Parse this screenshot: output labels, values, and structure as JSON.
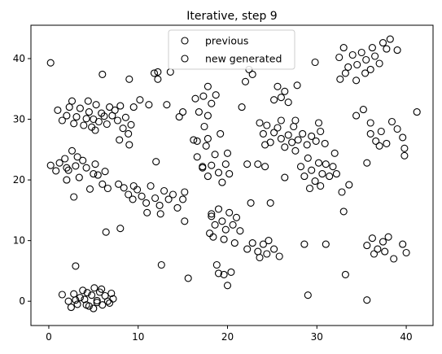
{
  "chart_data": {
    "type": "scatter",
    "title": "Iterative, step 9",
    "xlabel": "",
    "ylabel": "",
    "xlim": [
      -2,
      43
    ],
    "ylim": [
      -4,
      45.5
    ],
    "xticks": [
      0,
      10,
      20,
      30,
      40
    ],
    "yticks": [
      0,
      10,
      20,
      30,
      40
    ],
    "grid": false,
    "legend_position": "top-center",
    "marker_color": "#000000",
    "series": [
      {
        "name": "previous",
        "marker": "open-circle",
        "points": [
          [
            1.5,
            1.1
          ],
          [
            2.2,
            0.0
          ],
          [
            2.8,
            1.2
          ],
          [
            3.2,
            -0.5
          ],
          [
            3.8,
            1.8
          ],
          [
            4.0,
            0.3
          ],
          [
            4.5,
            -0.8
          ],
          [
            4.8,
            1.0
          ],
          [
            5.1,
            2.2
          ],
          [
            5.4,
            0.1
          ],
          [
            5.7,
            1.5
          ],
          [
            6.0,
            -0.6
          ],
          [
            6.3,
            0.9
          ],
          [
            6.6,
            0.0
          ],
          [
            7.0,
            1.3
          ],
          [
            2.5,
            -1.0
          ],
          [
            3.5,
            0.6
          ],
          [
            5.0,
            -1.2
          ],
          [
            6.8,
            -0.3
          ],
          [
            4.3,
            1.4
          ],
          [
            5.9,
            2.0
          ],
          [
            3.0,
            0.2
          ],
          [
            1.0,
            31.5
          ],
          [
            1.5,
            29.8
          ],
          [
            2.0,
            30.6
          ],
          [
            2.3,
            32.0
          ],
          [
            2.8,
            29.3
          ],
          [
            3.1,
            30.4
          ],
          [
            3.5,
            31.8
          ],
          [
            3.9,
            29.0
          ],
          [
            4.2,
            30.1
          ],
          [
            4.5,
            31.2
          ],
          [
            4.8,
            28.7
          ],
          [
            5.0,
            30.0
          ],
          [
            5.3,
            32.4
          ],
          [
            5.6,
            29.6
          ],
          [
            5.9,
            31.0
          ],
          [
            6.2,
            30.5
          ],
          [
            6.5,
            29.2
          ],
          [
            6.8,
            32.0
          ],
          [
            7.1,
            30.6
          ],
          [
            7.4,
            31.5
          ],
          [
            7.7,
            29.8
          ],
          [
            8.0,
            32.2
          ],
          [
            8.3,
            28.5
          ],
          [
            8.6,
            30.3
          ],
          [
            8.9,
            27.6
          ],
          [
            9.2,
            29.1
          ],
          [
            9.5,
            32.0
          ],
          [
            6.0,
            37.4
          ],
          [
            4.4,
            33.0
          ],
          [
            2.6,
            33.0
          ],
          [
            5.2,
            28.2
          ],
          [
            7.9,
            26.6
          ],
          [
            9.0,
            25.8
          ],
          [
            0.2,
            22.4
          ],
          [
            0.8,
            21.5
          ],
          [
            1.2,
            22.8
          ],
          [
            1.8,
            23.5
          ],
          [
            2.2,
            21.6
          ],
          [
            2.6,
            24.8
          ],
          [
            3.0,
            22.3
          ],
          [
            3.4,
            20.4
          ],
          [
            3.8,
            23.2
          ],
          [
            4.2,
            22.0
          ],
          [
            4.6,
            18.5
          ],
          [
            5.0,
            21.0
          ],
          [
            5.5,
            20.8
          ],
          [
            6.0,
            19.3
          ],
          [
            6.3,
            21.4
          ],
          [
            6.6,
            18.6
          ],
          [
            2.0,
            20.0
          ],
          [
            3.2,
            23.8
          ],
          [
            5.2,
            22.6
          ],
          [
            7.8,
            19.3
          ],
          [
            8.4,
            18.7
          ],
          [
            8.9,
            17.6
          ],
          [
            9.4,
            16.8
          ],
          [
            9.9,
            18.4
          ],
          [
            10.4,
            17.3
          ],
          [
            10.9,
            16.2
          ],
          [
            11.4,
            19.0
          ],
          [
            11.9,
            17.0
          ],
          [
            12.4,
            15.8
          ],
          [
            12.9,
            18.2
          ],
          [
            13.4,
            16.8
          ],
          [
            13.9,
            17.6
          ],
          [
            14.4,
            15.4
          ],
          [
            11.0,
            14.6
          ],
          [
            12.5,
            14.4
          ],
          [
            15.0,
            16.8
          ],
          [
            9.5,
            19.0
          ],
          [
            16.6,
            23.8
          ],
          [
            17.2,
            22.2
          ],
          [
            17.8,
            20.6
          ],
          [
            18.2,
            22.4
          ],
          [
            18.6,
            24.2
          ],
          [
            19.0,
            21.2
          ],
          [
            19.4,
            19.6
          ],
          [
            19.8,
            22.6
          ],
          [
            20.2,
            21.0
          ],
          [
            17.6,
            25.6
          ],
          [
            20.0,
            24.4
          ],
          [
            16.4,
            33.4
          ],
          [
            16.8,
            31.2
          ],
          [
            17.3,
            33.8
          ],
          [
            17.8,
            30.6
          ],
          [
            18.2,
            32.6
          ],
          [
            18.7,
            34.0
          ],
          [
            19.2,
            27.6
          ],
          [
            17.4,
            28.8
          ],
          [
            18.2,
            14.0
          ],
          [
            18.6,
            12.6
          ],
          [
            19.0,
            15.2
          ],
          [
            19.4,
            13.2
          ],
          [
            19.8,
            11.8
          ],
          [
            20.2,
            14.6
          ],
          [
            20.6,
            12.6
          ],
          [
            21.0,
            13.8
          ],
          [
            21.4,
            11.6
          ],
          [
            18.4,
            10.6
          ],
          [
            19.6,
            10.2
          ],
          [
            20.8,
            9.6
          ],
          [
            18.0,
            11.2
          ],
          [
            23.6,
            29.4
          ],
          [
            24.0,
            27.6
          ],
          [
            24.4,
            29.0
          ],
          [
            24.8,
            26.2
          ],
          [
            25.2,
            27.8
          ],
          [
            25.6,
            28.6
          ],
          [
            26.0,
            26.8
          ],
          [
            26.4,
            25.4
          ],
          [
            26.8,
            27.4
          ],
          [
            27.2,
            26.2
          ],
          [
            24.2,
            25.8
          ],
          [
            25.6,
            35.4
          ],
          [
            26.0,
            33.6
          ],
          [
            26.4,
            34.6
          ],
          [
            26.8,
            32.8
          ],
          [
            25.2,
            33.2
          ],
          [
            27.4,
            28.8
          ],
          [
            27.9,
            26.6
          ],
          [
            28.4,
            27.6
          ],
          [
            28.9,
            25.8
          ],
          [
            29.4,
            27.2
          ],
          [
            29.9,
            26.4
          ],
          [
            30.4,
            28.0
          ],
          [
            30.9,
            26.0
          ],
          [
            27.6,
            24.8
          ],
          [
            28.2,
            22.2
          ],
          [
            28.6,
            20.6
          ],
          [
            29.0,
            23.6
          ],
          [
            29.4,
            21.6
          ],
          [
            29.8,
            19.8
          ],
          [
            30.2,
            22.8
          ],
          [
            30.6,
            21.0
          ],
          [
            31.0,
            22.6
          ],
          [
            31.4,
            20.6
          ],
          [
            31.8,
            22.2
          ],
          [
            32.2,
            21.0
          ],
          [
            29.2,
            18.6
          ],
          [
            30.4,
            19.0
          ],
          [
            32.5,
            40.2
          ],
          [
            33.0,
            41.8
          ],
          [
            33.5,
            38.6
          ],
          [
            34.0,
            40.6
          ],
          [
            34.5,
            39.0
          ],
          [
            35.0,
            41.0
          ],
          [
            35.5,
            39.8
          ],
          [
            36.0,
            38.2
          ],
          [
            36.5,
            40.4
          ],
          [
            37.0,
            39.2
          ],
          [
            34.4,
            36.4
          ],
          [
            35.4,
            37.6
          ],
          [
            36.2,
            41.8
          ],
          [
            33.2,
            37.6
          ],
          [
            36.0,
            27.6
          ],
          [
            36.6,
            26.4
          ],
          [
            37.2,
            28.0
          ],
          [
            37.8,
            26.0
          ],
          [
            38.4,
            29.6
          ],
          [
            39.0,
            28.4
          ],
          [
            39.6,
            27.0
          ],
          [
            37.0,
            25.6
          ],
          [
            35.6,
            9.2
          ],
          [
            36.2,
            10.4
          ],
          [
            36.8,
            8.6
          ],
          [
            37.4,
            9.8
          ],
          [
            38.0,
            10.6
          ],
          [
            36.4,
            7.8
          ],
          [
            37.6,
            8.2
          ],
          [
            39.6,
            9.4
          ],
          [
            40.0,
            8.0
          ],
          [
            22.2,
            8.6
          ],
          [
            22.8,
            9.6
          ],
          [
            23.4,
            8.2
          ],
          [
            24.0,
            9.4
          ],
          [
            24.6,
            10.0
          ],
          [
            25.2,
            8.6
          ],
          [
            23.6,
            7.2
          ],
          [
            24.4,
            7.8
          ]
        ]
      },
      {
        "name": "new generated",
        "marker": "open-circle",
        "points": [
          [
            0.2,
            39.3
          ],
          [
            2.0,
            22.0
          ],
          [
            2.8,
            17.2
          ],
          [
            3.0,
            5.8
          ],
          [
            4.2,
            -0.6
          ],
          [
            5.4,
            -0.2
          ],
          [
            6.4,
            11.4
          ],
          [
            7.2,
            0.4
          ],
          [
            8.0,
            12.0
          ],
          [
            9.0,
            36.6
          ],
          [
            10.2,
            33.2
          ],
          [
            11.2,
            32.4
          ],
          [
            11.8,
            37.6
          ],
          [
            12.2,
            37.8
          ],
          [
            12.2,
            36.6
          ],
          [
            12.0,
            23.0
          ],
          [
            12.6,
            6.0
          ],
          [
            13.2,
            32.4
          ],
          [
            13.6,
            37.8
          ],
          [
            14.6,
            30.4
          ],
          [
            15.0,
            31.2
          ],
          [
            15.2,
            13.2
          ],
          [
            15.2,
            18.0
          ],
          [
            15.6,
            3.8
          ],
          [
            16.2,
            26.6
          ],
          [
            16.6,
            26.4
          ],
          [
            17.2,
            22.0
          ],
          [
            17.8,
            35.4
          ],
          [
            17.8,
            26.8
          ],
          [
            18.2,
            14.4
          ],
          [
            18.8,
            6.0
          ],
          [
            19.0,
            4.6
          ],
          [
            19.6,
            4.4
          ],
          [
            20.0,
            2.6
          ],
          [
            20.4,
            4.8
          ],
          [
            21.6,
            32.0
          ],
          [
            22.0,
            36.2
          ],
          [
            22.4,
            38.2
          ],
          [
            22.8,
            37.4
          ],
          [
            22.2,
            22.6
          ],
          [
            22.6,
            16.2
          ],
          [
            23.4,
            22.6
          ],
          [
            24.2,
            22.2
          ],
          [
            24.8,
            16.2
          ],
          [
            25.8,
            7.4
          ],
          [
            26.4,
            20.4
          ],
          [
            26.0,
            29.8
          ],
          [
            27.6,
            29.8
          ],
          [
            27.8,
            35.6
          ],
          [
            28.6,
            9.4
          ],
          [
            29.0,
            1.0
          ],
          [
            29.8,
            39.4
          ],
          [
            30.2,
            29.4
          ],
          [
            31.0,
            9.4
          ],
          [
            32.0,
            24.4
          ],
          [
            32.6,
            36.6
          ],
          [
            33.0,
            14.8
          ],
          [
            33.2,
            4.4
          ],
          [
            33.6,
            19.2
          ],
          [
            32.8,
            18.0
          ],
          [
            34.4,
            30.6
          ],
          [
            35.2,
            31.6
          ],
          [
            35.6,
            22.8
          ],
          [
            35.6,
            0.2
          ],
          [
            36.0,
            29.4
          ],
          [
            37.4,
            42.6
          ],
          [
            37.8,
            41.6
          ],
          [
            38.2,
            43.2
          ],
          [
            38.6,
            7.0
          ],
          [
            39.0,
            41.4
          ],
          [
            39.8,
            25.2
          ],
          [
            39.8,
            24.0
          ],
          [
            41.2,
            31.2
          ]
        ]
      }
    ]
  }
}
